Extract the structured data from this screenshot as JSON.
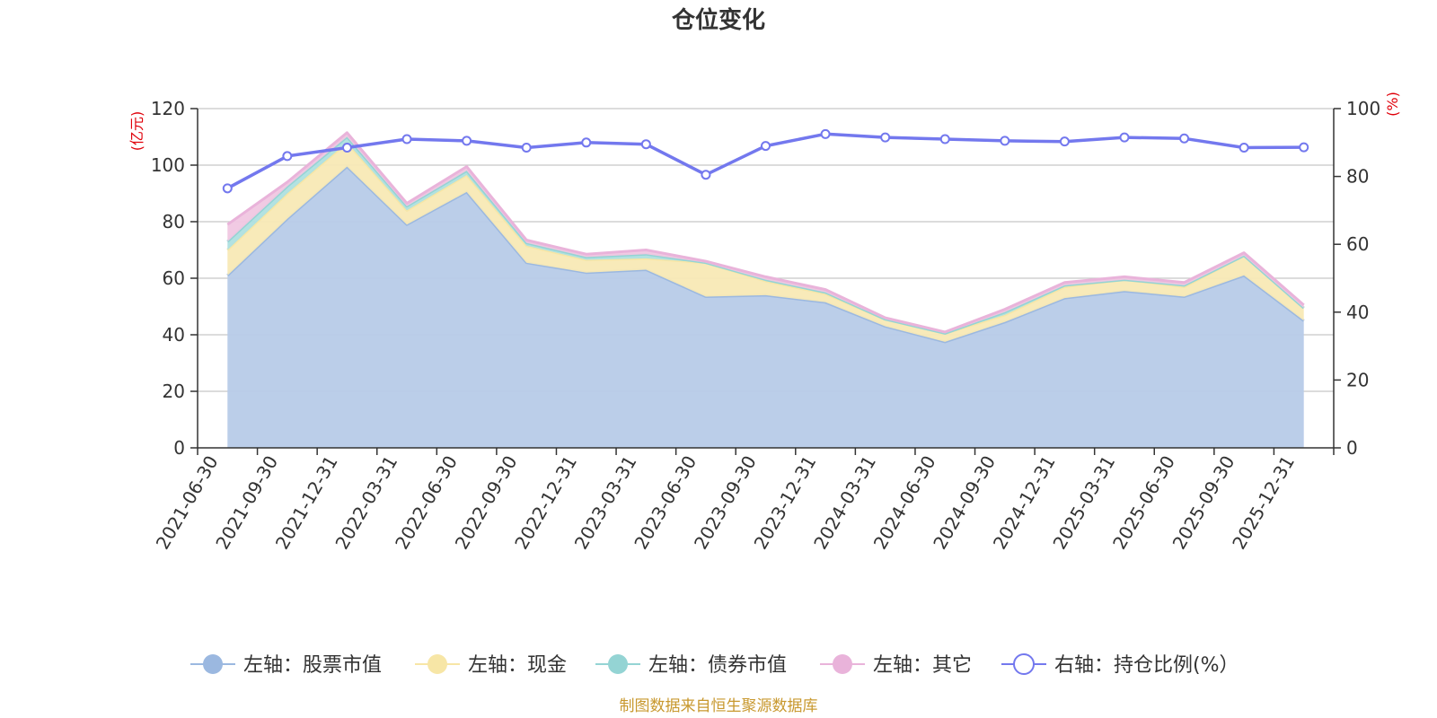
{
  "chart_data": {
    "type": "area",
    "title": "仓位变化",
    "left_unit": "(亿元)",
    "right_unit": "(%)",
    "source": "制图数据来自恒生聚源数据库",
    "x": [
      "2021-06-30",
      "2021-09-30",
      "2021-12-31",
      "2022-03-31",
      "2022-06-30",
      "2022-09-30",
      "2022-12-31",
      "2023-03-31",
      "2023-06-30",
      "2023-09-30",
      "2023-12-31",
      "2024-03-31",
      "2024-06-30",
      "2024-09-30",
      "2024-12-31",
      "2025-03-31",
      "2025-06-30",
      "2025-09-30",
      "2025-12-31"
    ],
    "ylim_left": [
      0,
      120
    ],
    "yticks_left": [
      0,
      20,
      40,
      60,
      80,
      100,
      120
    ],
    "ylim_right": [
      0,
      100
    ],
    "yticks_right": [
      0,
      20,
      40,
      60,
      80,
      100
    ],
    "stacked_series": [
      {
        "name": "左轴：股票市值",
        "color": "#9bb8e0",
        "fill": "#b7cbe8",
        "values": [
          61.0,
          81.0,
          99.5,
          79.0,
          90.5,
          65.5,
          62.0,
          63.0,
          53.5,
          54.0,
          51.5,
          43.0,
          37.5,
          44.5,
          53.0,
          55.5,
          53.5,
          61.0,
          45.0
        ]
      },
      {
        "name": "左轴：现金",
        "color": "#f7e6a6",
        "fill": "#f8e9b5",
        "values": [
          9.0,
          9.0,
          8.5,
          5.0,
          6.0,
          6.0,
          4.5,
          4.0,
          12.0,
          5.0,
          3.0,
          2.5,
          3.0,
          2.5,
          4.0,
          4.0,
          3.5,
          7.0,
          4.5
        ]
      },
      {
        "name": "左轴：债券市值",
        "color": "#94d4d4",
        "fill": "#aee0e0",
        "values": [
          3.0,
          2.5,
          2.0,
          1.5,
          1.5,
          1.0,
          1.0,
          1.5,
          0.0,
          0.5,
          0.5,
          0.0,
          0.0,
          1.0,
          0.5,
          0.0,
          0.5,
          0.0,
          0.0
        ]
      },
      {
        "name": "左轴：其它",
        "color": "#e9b3da",
        "fill": "#f0c7e2",
        "values": [
          6.0,
          1.5,
          1.5,
          1.0,
          1.5,
          1.0,
          1.0,
          1.5,
          0.5,
          1.0,
          1.0,
          0.5,
          0.5,
          1.0,
          1.0,
          1.0,
          1.0,
          1.0,
          1.0
        ]
      }
    ],
    "line_series": {
      "name": "右轴：持仓比例(%）",
      "color": "#7378ee",
      "values": [
        76.5,
        86.0,
        88.5,
        91.0,
        90.5,
        88.5,
        90.0,
        89.5,
        80.5,
        89.0,
        92.5,
        91.5,
        91.0,
        90.5,
        90.3,
        91.5,
        91.2,
        88.5,
        88.6
      ]
    },
    "legend": [
      "左轴：股票市值",
      "左轴：现金",
      "左轴：债券市值",
      "左轴：其它",
      "右轴：持仓比例(%）"
    ],
    "legend_position": "bottom",
    "grid": true
  }
}
